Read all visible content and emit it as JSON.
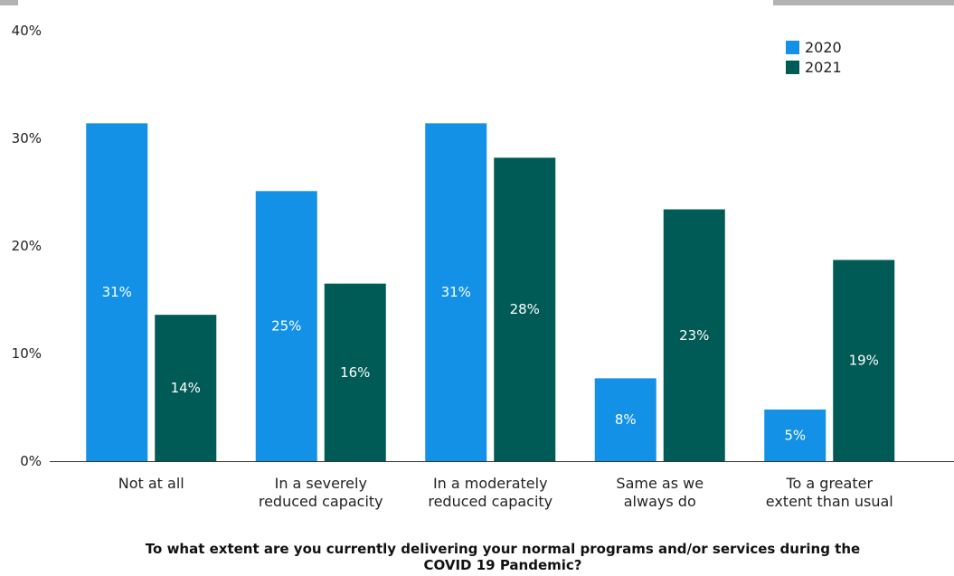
{
  "chart_data": {
    "type": "bar",
    "title": "",
    "xlabel": "To what extent are you currently delivering your normal programs and/or services during the COVID 19 Pandemic?",
    "xlabel_lines": [
      "To what extent are you currently delivering your normal programs and/or services during the",
      "COVID 19 Pandemic?"
    ],
    "ylabel": "",
    "ylim": [
      0,
      40
    ],
    "yticks": [
      0,
      10,
      20,
      30,
      40
    ],
    "ytick_labels": [
      "0%",
      "10%",
      "20%",
      "30%",
      "40%"
    ],
    "grid": false,
    "legend_position": "top-right",
    "categories": [
      [
        "Not at all"
      ],
      [
        "In a severely",
        "reduced capacity"
      ],
      [
        "In a moderately",
        "reduced capacity"
      ],
      [
        "Same as we",
        "always do"
      ],
      [
        "To a greater",
        "extent than usual"
      ]
    ],
    "series": [
      {
        "name": "2020",
        "color": "#1391e6",
        "values": [
          31.4,
          25.1,
          31.4,
          7.7,
          4.8
        ],
        "labels": [
          "31%",
          "25%",
          "31%",
          "8%",
          "5%"
        ]
      },
      {
        "name": "2021",
        "color": "#005a55",
        "values": [
          13.6,
          16.5,
          28.2,
          23.4,
          18.7
        ],
        "labels": [
          "14%",
          "16%",
          "28%",
          "23%",
          "19%"
        ]
      }
    ]
  }
}
